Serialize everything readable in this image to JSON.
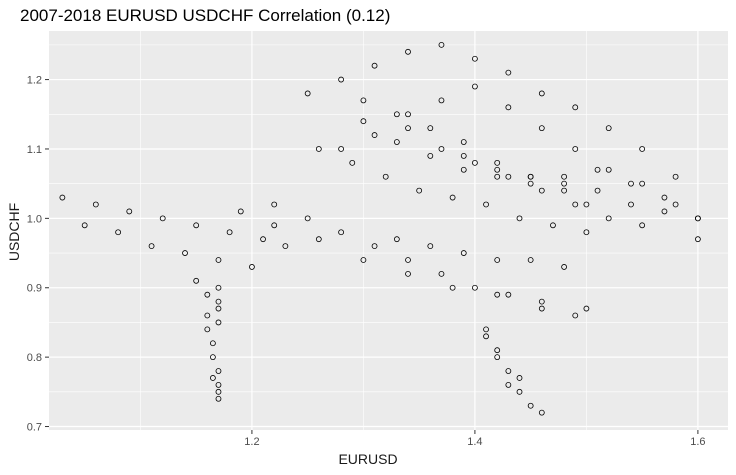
{
  "chart_data": {
    "type": "scatter",
    "title": "2007-2018 EURUSD USDCHF Correlation (0.12)",
    "xlabel": "EURUSD",
    "ylabel": "USDCHF",
    "xlim": [
      1.018,
      1.627
    ],
    "ylim": [
      0.695,
      1.27
    ],
    "x_ticks": [
      1.2,
      1.4,
      1.6
    ],
    "x_tick_labels": [
      "1.2",
      "1.4",
      "1.6"
    ],
    "y_ticks": [
      0.7,
      0.8,
      0.9,
      1.0,
      1.1,
      1.2
    ],
    "y_tick_labels": [
      "0.7",
      "0.8",
      "0.9",
      "1.0",
      "1.1",
      "1.2"
    ],
    "grid": true,
    "background": "#ebebeb",
    "grid_color": "#ffffff",
    "marker": "hollow-circle",
    "marker_color": "#000000",
    "series": [
      {
        "x": [
          1.03,
          1.06,
          1.09,
          1.12,
          1.15,
          1.18,
          1.21,
          1.23,
          1.05,
          1.08,
          1.11,
          1.14,
          1.17,
          1.2,
          1.22,
          1.25,
          1.28,
          1.31,
          1.34,
          1.37,
          1.4,
          1.43,
          1.46,
          1.49,
          1.19,
          1.22,
          1.26,
          1.3,
          1.34,
          1.38,
          1.42,
          1.46,
          1.5,
          1.33,
          1.36,
          1.39,
          1.42,
          1.45,
          1.48,
          1.41,
          1.42,
          1.43,
          1.44,
          1.45,
          1.46,
          1.42,
          1.44,
          1.43,
          1.41,
          1.15,
          1.16,
          1.17,
          1.16,
          1.17,
          1.17,
          1.16,
          1.165,
          1.17,
          1.165,
          1.17,
          1.17,
          1.165,
          1.17,
          1.17,
          1.25,
          1.28,
          1.31,
          1.34,
          1.37,
          1.4,
          1.43,
          1.46,
          1.49,
          1.52,
          1.55,
          1.58,
          1.28,
          1.31,
          1.34,
          1.37,
          1.4,
          1.43,
          1.46,
          1.49,
          1.52,
          1.55,
          1.58,
          1.6,
          1.3,
          1.33,
          1.36,
          1.39,
          1.42,
          1.45,
          1.48,
          1.5,
          1.34,
          1.37,
          1.4,
          1.43,
          1.46,
          1.49,
          1.52,
          1.55,
          1.3,
          1.33,
          1.36,
          1.39,
          1.42,
          1.45,
          1.48,
          1.51,
          1.54,
          1.57,
          1.6,
          1.26,
          1.29,
          1.32,
          1.35,
          1.38,
          1.41,
          1.44,
          1.47,
          1.5,
          1.39,
          1.42,
          1.45,
          1.48,
          1.51,
          1.54,
          1.57,
          1.6
        ],
        "y": [
          1.03,
          1.02,
          1.01,
          1.0,
          0.99,
          0.98,
          0.97,
          0.96,
          0.99,
          0.98,
          0.96,
          0.95,
          0.94,
          0.93,
          1.02,
          1.0,
          0.98,
          0.96,
          0.94,
          0.92,
          0.9,
          0.89,
          0.87,
          0.86,
          1.01,
          0.99,
          0.97,
          0.94,
          0.92,
          0.9,
          0.89,
          0.88,
          0.87,
          0.97,
          0.96,
          0.95,
          0.94,
          0.94,
          0.93,
          0.84,
          0.81,
          0.78,
          0.75,
          0.73,
          0.72,
          0.8,
          0.77,
          0.76,
          0.83,
          0.91,
          0.89,
          0.87,
          0.86,
          0.9,
          0.88,
          0.84,
          0.82,
          0.85,
          0.8,
          0.78,
          0.76,
          0.77,
          0.75,
          0.74,
          1.18,
          1.2,
          1.22,
          1.24,
          1.25,
          1.23,
          1.21,
          1.18,
          1.16,
          1.13,
          1.1,
          1.06,
          1.1,
          1.12,
          1.15,
          1.17,
          1.19,
          1.16,
          1.13,
          1.1,
          1.07,
          1.05,
          1.02,
          1.0,
          1.17,
          1.15,
          1.13,
          1.11,
          1.08,
          1.06,
          1.04,
          1.02,
          1.13,
          1.1,
          1.08,
          1.06,
          1.04,
          1.02,
          1.0,
          0.99,
          1.14,
          1.11,
          1.09,
          1.07,
          1.06,
          1.05,
          1.06,
          1.07,
          1.05,
          1.03,
          1.0,
          1.1,
          1.08,
          1.06,
          1.04,
          1.03,
          1.02,
          1.0,
          0.99,
          0.98,
          1.09,
          1.07,
          1.06,
          1.05,
          1.04,
          1.02,
          1.01,
          0.97
        ]
      }
    ]
  }
}
